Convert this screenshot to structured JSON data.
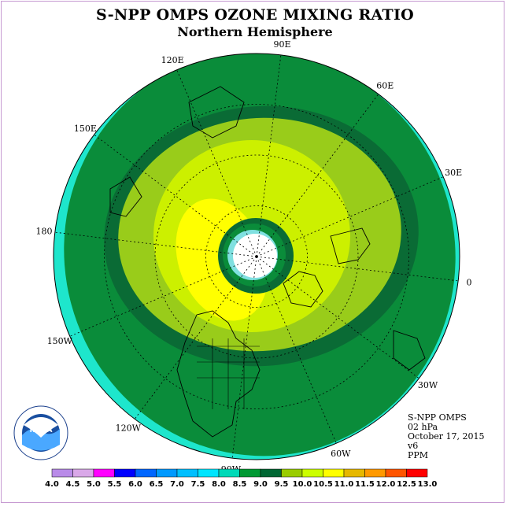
{
  "title": "S-NPP OMPS OZONE MIXING RATIO",
  "subtitle": "Northern Hemisphere",
  "meridian_labels": [
    "90E",
    "60E",
    "30E",
    "0",
    "30W",
    "60W",
    "90W",
    "120W",
    "150W",
    "180",
    "150E",
    "120E"
  ],
  "info": {
    "instrument": "S-NPP OMPS",
    "level": "02 hPa",
    "date": "October 17, 2015",
    "version": "v6",
    "units": "PPM"
  },
  "logo": {
    "text": "NOAA",
    "ring_text": "NATIONAL OCEANIC AND ATMOSPHERIC ADMINISTRATION · U.S. DEPARTMENT OF COMMERCE"
  },
  "colorbar": {
    "labels": [
      "4.0",
      "4.5",
      "5.0",
      "5.5",
      "6.0",
      "6.5",
      "7.0",
      "7.5",
      "8.0",
      "8.5",
      "9.0",
      "9.5",
      "10.0",
      "10.5",
      "11.0",
      "11.5",
      "12.0",
      "12.5",
      "13.0"
    ],
    "colors": [
      "#b98be8",
      "#d9a8e8",
      "#ff00ff",
      "#0000ff",
      "#0066ff",
      "#0099ff",
      "#00bfff",
      "#00e5ff",
      "#00d9b8",
      "#009933",
      "#006633",
      "#99cc00",
      "#ccff00",
      "#ffff00",
      "#e6b800",
      "#ff9900",
      "#ff5500",
      "#ff0000",
      "#8b5a3c"
    ]
  },
  "field_colors": {
    "band_8_0": "#1ee6cc",
    "band_8_5": "#0a8c3a",
    "band_9_0": "#0a6b35",
    "band_9_5": "#99cc1a",
    "band_10_0": "#ccf000",
    "band_10_5": "#ffff00",
    "pole_missing": "#ffffff",
    "pole_ring": "#7fe0e0"
  }
}
